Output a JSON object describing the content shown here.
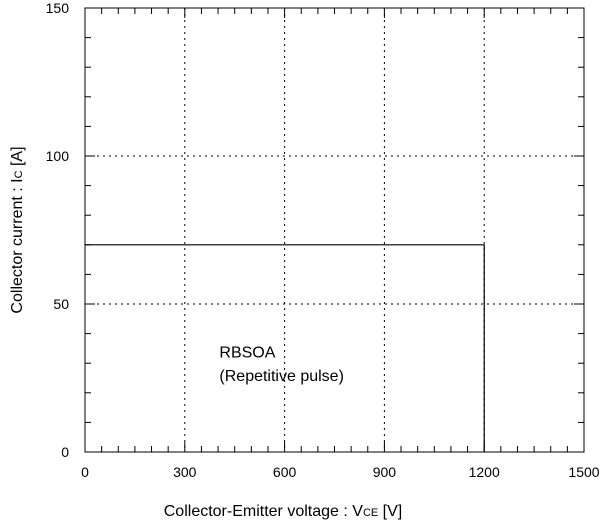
{
  "chart_data": {
    "type": "line",
    "title": "",
    "xlabel": "Collector-Emitter voltage : V",
    "xlabel_subscript": "CE",
    "xlabel_unit": " [V]",
    "ylabel": "Collector current : I",
    "ylabel_subscript": "C",
    "ylabel_unit": " [A]",
    "xlim": [
      0,
      1500
    ],
    "ylim": [
      0,
      150
    ],
    "x_ticks": [
      0,
      300,
      600,
      900,
      1200,
      1500
    ],
    "y_ticks": [
      0,
      50,
      100,
      150
    ],
    "x_tick_labels": [
      "0",
      "300",
      "600",
      "900",
      "1200",
      "1500"
    ],
    "y_tick_labels": [
      "0",
      "50",
      "100",
      "150"
    ],
    "grid": true,
    "series": [
      {
        "x": [
          0,
          1200,
          1200
        ],
        "y": [
          70,
          70,
          0
        ]
      }
    ],
    "annotations": [
      {
        "text": "RBSOA",
        "x": 380,
        "y": 32
      },
      {
        "text": "(Repetitive pulse)",
        "x": 380,
        "y": 24
      }
    ]
  }
}
